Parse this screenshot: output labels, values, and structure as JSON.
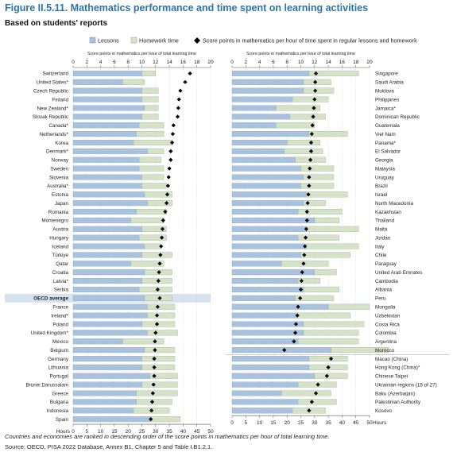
{
  "header": {
    "title": "Figure II.5.11. Mathematics performance and time spent on learning activities",
    "subtitle": "Based on students' reports"
  },
  "footer": {
    "note": "Countries and economies are ranked in descending order of the score points in mathematics per hour of total learning time.",
    "source": "Source: OECD, PISA 2022 Database, Annex B1, Chapter 5 and Table I.B1.2.1."
  },
  "colors": {
    "lessons": "#a9c3df",
    "homework": "#d4e2c8",
    "diamond": "#000000",
    "oecd_highlight": "#d6e3ee",
    "gridline": "#bbbbbb"
  },
  "chart_data": {
    "type": "bar",
    "stacked": true,
    "series": [
      {
        "name": "Lessons",
        "key": "lessons"
      },
      {
        "name": "Homework time",
        "key": "homework"
      },
      {
        "name": "Score points in mathematics per hour of time spent in regular lessons and homework",
        "key": "score_per_hour"
      }
    ],
    "hours_axis": {
      "label": "Hours",
      "ticks": [
        0,
        5,
        10,
        15,
        20,
        25,
        30,
        35,
        40,
        45,
        50
      ],
      "range": [
        0,
        50
      ]
    },
    "score_axis": {
      "label": "Score points in mathematics per hour of total learning time",
      "ticks": [
        0,
        2,
        4,
        6,
        8,
        10,
        12,
        14,
        16,
        18,
        20
      ],
      "range": [
        0,
        20
      ]
    },
    "panels": [
      {
        "countries": [
          {
            "name": "Switzerland",
            "lessons": 25,
            "homework": 5,
            "score_per_hour": 17.0
          },
          {
            "name": "United States*",
            "lessons": 18,
            "homework": 8,
            "score_per_hour": 16.3
          },
          {
            "name": "Czech Republic",
            "lessons": 25,
            "homework": 6,
            "score_per_hour": 15.6
          },
          {
            "name": "Finland",
            "lessons": 25,
            "homework": 6,
            "score_per_hour": 15.4
          },
          {
            "name": "New Zealand*",
            "lessons": 26,
            "homework": 5,
            "score_per_hour": 15.3
          },
          {
            "name": "Slovak Republic",
            "lessons": 25,
            "homework": 6,
            "score_per_hour": 15.2
          },
          {
            "name": "Canada*",
            "lessons": 24,
            "homework": 9,
            "score_per_hour": 14.6
          },
          {
            "name": "Netherlands*",
            "lessons": 23,
            "homework": 10,
            "score_per_hour": 14.5
          },
          {
            "name": "Korea",
            "lessons": 22,
            "homework": 14,
            "score_per_hour": 14.4
          },
          {
            "name": "Denmark*",
            "lessons": 27,
            "homework": 6,
            "score_per_hour": 14.2
          },
          {
            "name": "Norway",
            "lessons": 24,
            "homework": 8,
            "score_per_hour": 14.2
          },
          {
            "name": "Sweden",
            "lessons": 24,
            "homework": 9,
            "score_per_hour": 14.0
          },
          {
            "name": "Slovenia",
            "lessons": 25,
            "homework": 8,
            "score_per_hour": 13.9
          },
          {
            "name": "Australia*",
            "lessons": 25,
            "homework": 9,
            "score_per_hour": 13.8
          },
          {
            "name": "Estonia",
            "lessons": 26,
            "homework": 10,
            "score_per_hour": 13.7
          },
          {
            "name": "Japan",
            "lessons": 27,
            "homework": 9,
            "score_per_hour": 13.6
          },
          {
            "name": "Romania",
            "lessons": 23,
            "homework": 11,
            "score_per_hour": 13.4
          },
          {
            "name": "Montenegro",
            "lessons": 21,
            "homework": 12,
            "score_per_hour": 13.1
          },
          {
            "name": "Austria",
            "lessons": 25,
            "homework": 9,
            "score_per_hour": 13.0
          },
          {
            "name": "Hungary",
            "lessons": 24,
            "homework": 10,
            "score_per_hour": 12.9
          },
          {
            "name": "Iceland",
            "lessons": 26,
            "homework": 6,
            "score_per_hour": 12.8
          },
          {
            "name": "Türkiye",
            "lessons": 25,
            "homework": 11,
            "score_per_hour": 12.7
          },
          {
            "name": "Qatar",
            "lessons": 21,
            "homework": 12,
            "score_per_hour": 12.6
          },
          {
            "name": "Croatia",
            "lessons": 26,
            "homework": 10,
            "score_per_hour": 12.5
          },
          {
            "name": "Latvia*",
            "lessons": 25,
            "homework": 11,
            "score_per_hour": 12.4
          },
          {
            "name": "Serbia",
            "lessons": 24,
            "homework": 12,
            "score_per_hour": 12.3
          },
          {
            "name": "OECD average",
            "lessons": 26,
            "homework": 10,
            "score_per_hour": 12.6,
            "highlight": true
          },
          {
            "name": "France",
            "lessons": 27,
            "homework": 10,
            "score_per_hour": 12.3
          },
          {
            "name": "Ireland*",
            "lessons": 27,
            "homework": 10,
            "score_per_hour": 12.2
          },
          {
            "name": "Poland",
            "lessons": 25,
            "homework": 12,
            "score_per_hour": 12.2
          },
          {
            "name": "United Kingdom*",
            "lessons": 27,
            "homework": 11,
            "score_per_hour": 12.0
          },
          {
            "name": "Mexico",
            "lessons": 18,
            "homework": 15,
            "score_per_hour": 11.9
          },
          {
            "name": "Belgium",
            "lessons": 26,
            "homework": 11,
            "score_per_hour": 11.9
          },
          {
            "name": "Germany",
            "lessons": 25,
            "homework": 12,
            "score_per_hour": 11.8
          },
          {
            "name": "Lithuania",
            "lessons": 25,
            "homework": 12,
            "score_per_hour": 11.8
          },
          {
            "name": "Portugal",
            "lessons": 28,
            "homework": 10,
            "score_per_hour": 11.8
          },
          {
            "name": "Brunei Darussalam",
            "lessons": 25,
            "homework": 13,
            "score_per_hour": 11.7
          },
          {
            "name": "Greece",
            "lessons": 23,
            "homework": 15,
            "score_per_hour": 11.6
          },
          {
            "name": "Bulgaria",
            "lessons": 23,
            "homework": 13,
            "score_per_hour": 11.5
          },
          {
            "name": "Indonesia",
            "lessons": 22,
            "homework": 13,
            "score_per_hour": 11.4
          },
          {
            "name": "Spain",
            "lessons": 28,
            "homework": 11,
            "score_per_hour": 11.3
          }
        ]
      },
      {
        "countries": [
          {
            "name": "Singapore",
            "lessons": 28,
            "homework": 18,
            "score_per_hour": 12.2
          },
          {
            "name": "Saudi Arabia",
            "lessons": 26,
            "homework": 10,
            "score_per_hour": 12.1
          },
          {
            "name": "Moldova",
            "lessons": 26,
            "homework": 11,
            "score_per_hour": 12.1
          },
          {
            "name": "Philippines",
            "lessons": 22,
            "homework": 13,
            "score_per_hour": 12.0
          },
          {
            "name": "Jamaica*",
            "lessons": 16,
            "homework": 16,
            "score_per_hour": 11.9
          },
          {
            "name": "Dominican Republic",
            "lessons": 21,
            "homework": 13,
            "score_per_hour": 11.8
          },
          {
            "name": "Guatemala",
            "lessons": 16,
            "homework": 14,
            "score_per_hour": 11.7
          },
          {
            "name": "Viet Nam",
            "lessons": 28,
            "homework": 14,
            "score_per_hour": 11.6
          },
          {
            "name": "Panama*",
            "lessons": 20,
            "homework": 12,
            "score_per_hour": 11.5
          },
          {
            "name": "El Salvador",
            "lessons": 19,
            "homework": 14,
            "score_per_hour": 11.5
          },
          {
            "name": "Georgia",
            "lessons": 23,
            "homework": 11,
            "score_per_hour": 11.4
          },
          {
            "name": "Malaysia",
            "lessons": 25,
            "homework": 12,
            "score_per_hour": 11.3
          },
          {
            "name": "Uruguay",
            "lessons": 26,
            "homework": 11,
            "score_per_hour": 11.2
          },
          {
            "name": "Brazil",
            "lessons": 25,
            "homework": 12,
            "score_per_hour": 11.2
          },
          {
            "name": "Israel",
            "lessons": 27,
            "homework": 15,
            "score_per_hour": 11.1
          },
          {
            "name": "North Macedonia",
            "lessons": 26,
            "homework": 8,
            "score_per_hour": 11.0
          },
          {
            "name": "Kazakhstan",
            "lessons": 24,
            "homework": 16,
            "score_per_hour": 10.9
          },
          {
            "name": "Thailand",
            "lessons": 30,
            "homework": 9,
            "score_per_hour": 10.9
          },
          {
            "name": "Malta",
            "lessons": 27,
            "homework": 19,
            "score_per_hour": 10.8
          },
          {
            "name": "Jordan",
            "lessons": 24,
            "homework": 15,
            "score_per_hour": 10.7
          },
          {
            "name": "Italy",
            "lessons": 27,
            "homework": 19,
            "score_per_hour": 10.6
          },
          {
            "name": "Chile",
            "lessons": 25,
            "homework": 18,
            "score_per_hour": 10.5
          },
          {
            "name": "Paraguay",
            "lessons": 18,
            "homework": 17,
            "score_per_hour": 10.4
          },
          {
            "name": "United Arab Emirates",
            "lessons": 30,
            "homework": 8,
            "score_per_hour": 10.2
          },
          {
            "name": "Cambodia",
            "lessons": 24,
            "homework": 8,
            "score_per_hour": 10.1
          },
          {
            "name": "Albania",
            "lessons": 26,
            "homework": 13,
            "score_per_hour": 10.0
          },
          {
            "name": "Peru",
            "lessons": 23,
            "homework": 14,
            "score_per_hour": 9.9
          },
          {
            "name": "Mongolia",
            "lessons": 35,
            "homework": 15,
            "score_per_hour": 9.6
          },
          {
            "name": "Uzbekistan",
            "lessons": 24,
            "homework": 19,
            "score_per_hour": 9.5
          },
          {
            "name": "Costa Rica",
            "lessons": 26,
            "homework": 22,
            "score_per_hour": 9.3
          },
          {
            "name": "Colombia",
            "lessons": 26,
            "homework": 20,
            "score_per_hour": 9.2
          },
          {
            "name": "Argentina",
            "lessons": 24,
            "homework": 22,
            "score_per_hour": 9.0
          },
          {
            "name": "Morocco",
            "lessons": 36,
            "homework": 21,
            "score_per_hour": 7.6
          },
          {
            "name": "Macao (China)",
            "lessons": 28,
            "homework": 14,
            "score_per_hour": 14.4
          },
          {
            "name": "Hong Kong (China)*",
            "lessons": 28,
            "homework": 14,
            "score_per_hour": 14.0
          },
          {
            "name": "Chinese Taipei",
            "lessons": 30,
            "homework": 12,
            "score_per_hour": 13.8
          },
          {
            "name": "Ukrainian regions (18 of 27)",
            "lessons": 24,
            "homework": 14,
            "score_per_hour": 12.5
          },
          {
            "name": "Baku (Azerbaijan)",
            "lessons": 18,
            "homework": 18,
            "score_per_hour": 12.2
          },
          {
            "name": "Palestinian Authority",
            "lessons": 24,
            "homework": 14,
            "score_per_hour": 11.6
          },
          {
            "name": "Kosovo",
            "lessons": 22,
            "homework": 12,
            "score_per_hour": 11.2
          }
        ]
      }
    ]
  }
}
